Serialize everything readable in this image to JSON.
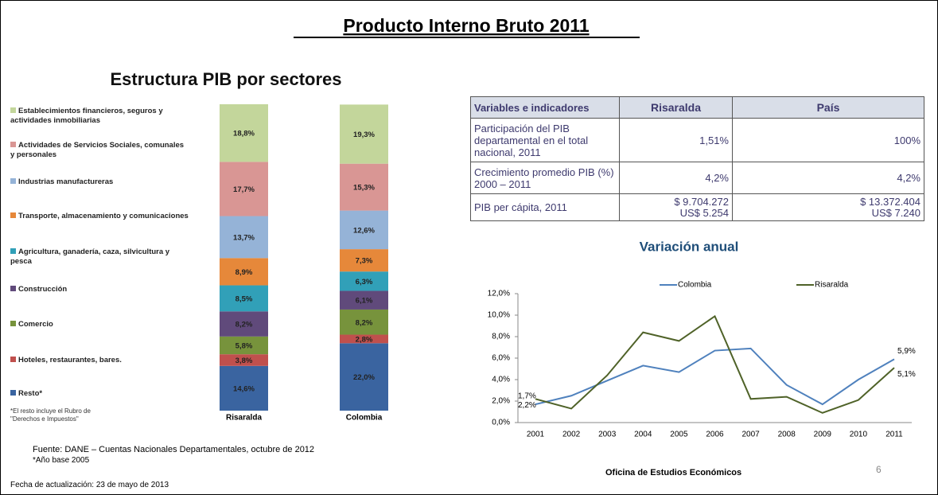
{
  "title": "Producto Interno Bruto 2011",
  "chart_data": [
    {
      "type": "stacked-bar",
      "title": "Estructura PIB por sectores",
      "categories": [
        "Risaralda",
        "Colombia"
      ],
      "series": [
        {
          "name": "Resto*",
          "color": "#3a64a0",
          "values": [
            14.6,
            22.0
          ],
          "value_labels": [
            "14,6%",
            "22,0%"
          ]
        },
        {
          "name": "Hoteles, restaurantes, bares.",
          "color": "#c0504d",
          "values": [
            3.8,
            2.8
          ],
          "value_labels": [
            "3,8%",
            "2,8%"
          ]
        },
        {
          "name": "Comercio",
          "color": "#77933c",
          "values": [
            5.8,
            8.2
          ],
          "value_labels": [
            "5,8%",
            "8,2%"
          ]
        },
        {
          "name": "Construcción",
          "color": "#604a7b",
          "values": [
            8.2,
            6.1
          ],
          "value_labels": [
            "8,2%",
            "6,1%"
          ]
        },
        {
          "name": "Agricultura, ganadería, caza, silvicultura y pesca",
          "color": "#31a0b8",
          "values": [
            8.5,
            6.3
          ],
          "value_labels": [
            "8,5%",
            "6,3%"
          ]
        },
        {
          "name": "Transporte, almacenamiento y comunicaciones",
          "color": "#e6883a",
          "values": [
            8.9,
            7.3
          ],
          "value_labels": [
            "8,9%",
            "7,3%"
          ]
        },
        {
          "name": "Industrias manufactureras",
          "color": "#95b3d7",
          "values": [
            13.7,
            12.6
          ],
          "value_labels": [
            "13,7%",
            "12,6%"
          ]
        },
        {
          "name": "Actividades de Servicios Sociales, comunales y personales",
          "color": "#d99694",
          "values": [
            17.7,
            15.3
          ],
          "value_labels": [
            "17,7%",
            "15,3%"
          ]
        },
        {
          "name": "Establecimientos financieros, seguros y actividades inmobiliarias",
          "color": "#c3d69b",
          "values": [
            18.8,
            19.3
          ],
          "value_labels": [
            "18,8%",
            "19,3%"
          ]
        }
      ],
      "footnote": "*El resto incluye el Rubro de \"Derechos e Impuestos\""
    },
    {
      "type": "line",
      "title": "Variación anual",
      "categories": [
        "2001",
        "2002",
        "2003",
        "2004",
        "2005",
        "2006",
        "2007",
        "2008",
        "2009",
        "2010",
        "2011"
      ],
      "series": [
        {
          "name": "Colombia",
          "color": "#4f81bd",
          "values": [
            1.7,
            2.5,
            3.9,
            5.3,
            4.7,
            6.7,
            6.9,
            3.5,
            1.7,
            4.0,
            5.9
          ],
          "value_labels": [
            "1,7%",
            null,
            null,
            null,
            null,
            null,
            null,
            null,
            null,
            null,
            "5,9%"
          ]
        },
        {
          "name": "Risaralda",
          "color": "#4f6228",
          "values": [
            2.2,
            1.3,
            4.4,
            8.4,
            7.6,
            9.9,
            2.2,
            2.4,
            0.9,
            2.1,
            5.1
          ],
          "value_labels": [
            "2,2%",
            null,
            null,
            null,
            null,
            null,
            null,
            null,
            null,
            null,
            "5,1%"
          ]
        }
      ],
      "ylim": [
        0,
        12
      ],
      "yticks": [
        {
          "value": 0,
          "label": "0,0%"
        },
        {
          "value": 2,
          "label": "2,0%"
        },
        {
          "value": 4,
          "label": "4,0%"
        },
        {
          "value": 6,
          "label": "6,0%"
        },
        {
          "value": 8,
          "label": "8,0%"
        },
        {
          "value": 10,
          "label": "10,0%"
        },
        {
          "value": 12,
          "label": "12,0%"
        }
      ]
    }
  ],
  "table": {
    "header": [
      "Variables e indicadores",
      "Risaralda",
      "País"
    ],
    "rows": [
      [
        "Participación del PIB departamental en el total nacional, 2011",
        "1,51%",
        "100%"
      ],
      [
        "Crecimiento promedio PIB (%) 2000 – 2011",
        "4,2%",
        "4,2%"
      ],
      [
        "PIB per cápita, 2011",
        [
          "$ 9.704.272",
          "US$ 5.254"
        ],
        [
          "$ 13.372.404",
          "US$ 7.240"
        ]
      ]
    ]
  },
  "footer": {
    "source": "Fuente: DANE – Cuentas Nacionales Departamentales, octubre de 2012",
    "base": "*Año base 2005",
    "updated": "Fecha de actualización: 23 de mayo de 2013",
    "office": "Oficina de Estudios Económicos",
    "page": "6"
  }
}
